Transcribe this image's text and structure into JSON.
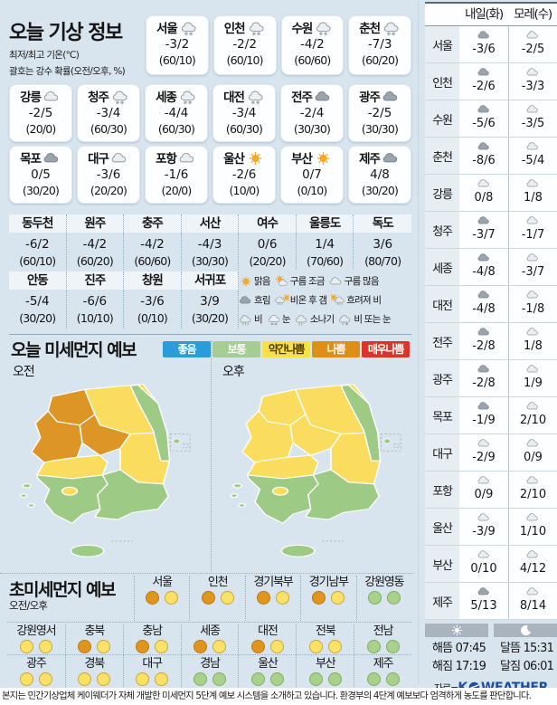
{
  "header": {
    "title": "오늘 기상 정보",
    "subtitle1": "최저/최고 기온(℃)",
    "subtitle2": "괄호는 강수 확률(오전/오후, %)"
  },
  "today_cards": {
    "row1": [
      {
        "name": "서울",
        "icon": "snow",
        "temp": "-3/2",
        "prob": "(60/10)"
      },
      {
        "name": "인천",
        "icon": "snow",
        "temp": "-2/2",
        "prob": "(60/10)"
      },
      {
        "name": "수원",
        "icon": "snow",
        "temp": "-4/2",
        "prob": "(60/60)"
      },
      {
        "name": "춘천",
        "icon": "snow",
        "temp": "-7/3",
        "prob": "(60/20)"
      }
    ],
    "row2": [
      {
        "name": "강릉",
        "icon": "cloud-light",
        "temp": "-2/5",
        "prob": "(20/0)"
      },
      {
        "name": "청주",
        "icon": "snow",
        "temp": "-3/4",
        "prob": "(60/30)"
      },
      {
        "name": "세종",
        "icon": "snow",
        "temp": "-4/4",
        "prob": "(60/30)"
      },
      {
        "name": "대전",
        "icon": "snow",
        "temp": "-3/4",
        "prob": "(60/30)"
      },
      {
        "name": "전주",
        "icon": "cloud-dark",
        "temp": "-2/4",
        "prob": "(30/30)"
      },
      {
        "name": "광주",
        "icon": "cloud-dark",
        "temp": "-2/5",
        "prob": "(30/30)"
      }
    ],
    "row3": [
      {
        "name": "목포",
        "icon": "cloud-dark",
        "temp": "0/5",
        "prob": "(30/20)"
      },
      {
        "name": "대구",
        "icon": "cloud-light",
        "temp": "-3/6",
        "prob": "(20/20)"
      },
      {
        "name": "포항",
        "icon": "cloud-light",
        "temp": "-1/6",
        "prob": "(20/0)"
      },
      {
        "name": "울산",
        "icon": "sun",
        "temp": "-2/6",
        "prob": "(10/0)"
      },
      {
        "name": "부산",
        "icon": "sun",
        "temp": "0/7",
        "prob": "(0/10)"
      },
      {
        "name": "제주",
        "icon": "cloud-dark",
        "temp": "4/8",
        "prob": "(30/20)"
      }
    ]
  },
  "extra_table": {
    "row1": [
      {
        "name": "동두천",
        "temp": "-6/2",
        "prob": "(60/10)"
      },
      {
        "name": "원주",
        "temp": "-4/2",
        "prob": "(60/20)"
      },
      {
        "name": "충주",
        "temp": "-4/2",
        "prob": "(60/60)"
      },
      {
        "name": "서산",
        "temp": "-4/3",
        "prob": "(30/30)"
      },
      {
        "name": "여수",
        "temp": "0/6",
        "prob": "(20/20)"
      },
      {
        "name": "울릉도",
        "temp": "1/4",
        "prob": "(70/60)"
      },
      {
        "name": "독도",
        "temp": "3/6",
        "prob": "(80/70)"
      }
    ],
    "row2": [
      {
        "name": "안동",
        "temp": "-5/4",
        "prob": "(30/20)"
      },
      {
        "name": "진주",
        "temp": "-6/6",
        "prob": "(10/10)"
      },
      {
        "name": "창원",
        "temp": "-3/6",
        "prob": "(0/10)"
      },
      {
        "name": "서귀포",
        "temp": "3/9",
        "prob": "(30/20)"
      }
    ]
  },
  "weather_legend": {
    "rows": [
      [
        {
          "icon": "sun",
          "label": "맑음"
        },
        {
          "icon": "sun-cloud",
          "label": "구름 조금"
        },
        {
          "icon": "cloud-light",
          "label": "구름 많음"
        }
      ],
      [
        {
          "icon": "cloud-dark",
          "label": "흐림"
        },
        {
          "icon": "rain-sun",
          "label": "비온 후 갬"
        },
        {
          "icon": "sun-rain",
          "label": "흐려져 비"
        }
      ],
      [
        {
          "icon": "rain",
          "label": "비"
        },
        {
          "icon": "snow",
          "label": "눈"
        },
        {
          "icon": "shower",
          "label": "소나기"
        },
        {
          "icon": "rain-or-snow",
          "label": "비 또는 눈"
        }
      ]
    ]
  },
  "dust": {
    "title": "오늘 미세먼지 예보",
    "legend": [
      {
        "label": "좋음",
        "color": "#2b9cd8",
        "text": "#ffffff"
      },
      {
        "label": "보통",
        "color": "#a6cd93",
        "text": "#ffffff"
      },
      {
        "label": "약간나쁨",
        "color": "#f8e04b",
        "text": "#4a3a00"
      },
      {
        "label": "나쁨",
        "color": "#dd9018",
        "text": "#ffffff"
      },
      {
        "label": "매우나쁨",
        "color": "#d9352a",
        "text": "#ffffff"
      }
    ],
    "level_colors": {
      "good": "#2b9cd8",
      "moderate": "#9dcb85",
      "slight": "#fadd5f",
      "bad": "#dd9526",
      "very_bad": "#d43026"
    },
    "maps": [
      {
        "label": "오전",
        "regions": {
          "gyeonggi": "bad",
          "gangwon": "slight",
          "east_strip": "moderate",
          "chungnam": "bad",
          "chungbuk": "bad",
          "gyeongbuk": "slight",
          "jeonbuk": "slight",
          "jeonnam": "moderate",
          "gyeongnam": "moderate",
          "gwangju": "slight",
          "jeju": "moderate",
          "ulleung": "moderate"
        }
      },
      {
        "label": "오후",
        "regions": {
          "gyeonggi": "slight",
          "gangwon": "slight",
          "east_strip": "moderate",
          "chungnam": "slight",
          "chungbuk": "slight",
          "gyeongbuk": "slight",
          "jeonbuk": "slight",
          "jeonnam": "moderate",
          "gyeongnam": "moderate",
          "gwangju": "slight",
          "jeju": "moderate",
          "ulleung": "moderate"
        }
      }
    ]
  },
  "ultrafine": {
    "title": "초미세먼지 예보",
    "subtitle": "오전/오후",
    "circle_colors": {
      "bad": "#e0951f",
      "slight": "#fbe168",
      "moderate": "#a9d18c"
    },
    "circle_borders": {
      "bad": "#b97a0d",
      "slight": "#c8a835",
      "moderate": "#7fae5f"
    },
    "row1": [
      {
        "name": "서울",
        "am": "bad",
        "pm": "slight"
      },
      {
        "name": "인천",
        "am": "bad",
        "pm": "slight"
      },
      {
        "name": "경기북부",
        "am": "bad",
        "pm": "slight"
      },
      {
        "name": "경기남부",
        "am": "bad",
        "pm": "slight"
      },
      {
        "name": "강원영동",
        "am": "moderate",
        "pm": "moderate"
      }
    ],
    "row2": [
      {
        "name": "강원영서",
        "am": "slight",
        "pm": "slight"
      },
      {
        "name": "충북",
        "am": "bad",
        "pm": "slight"
      },
      {
        "name": "충남",
        "am": "bad",
        "pm": "slight"
      },
      {
        "name": "세종",
        "am": "bad",
        "pm": "slight"
      },
      {
        "name": "대전",
        "am": "bad",
        "pm": "slight"
      },
      {
        "name": "전북",
        "am": "slight",
        "pm": "slight"
      },
      {
        "name": "전남",
        "am": "moderate",
        "pm": "moderate"
      }
    ],
    "row3": [
      {
        "name": "광주",
        "am": "slight",
        "pm": "slight"
      },
      {
        "name": "경북",
        "am": "slight",
        "pm": "slight"
      },
      {
        "name": "대구",
        "am": "slight",
        "pm": "slight"
      },
      {
        "name": "경남",
        "am": "moderate",
        "pm": "moderate"
      },
      {
        "name": "울산",
        "am": "moderate",
        "pm": "moderate"
      },
      {
        "name": "부산",
        "am": "moderate",
        "pm": "moderate"
      },
      {
        "name": "제주",
        "am": "moderate",
        "pm": "moderate"
      }
    ]
  },
  "sidebar": {
    "col1": "내일(화)",
    "col2": "모레(수)",
    "rows": [
      {
        "name": "서울",
        "icon1": "cloud-dark",
        "temp1": "-3/6",
        "icon2": "cloud-light",
        "temp2": "-2/5"
      },
      {
        "name": "인천",
        "icon1": "cloud-dark",
        "temp1": "-2/6",
        "icon2": "cloud-light",
        "temp2": "-3/3"
      },
      {
        "name": "수원",
        "icon1": "cloud-dark",
        "temp1": "-5/6",
        "icon2": "cloud-light",
        "temp2": "-3/5"
      },
      {
        "name": "춘천",
        "icon1": "cloud-dark",
        "temp1": "-8/6",
        "icon2": "cloud-light",
        "temp2": "-5/4"
      },
      {
        "name": "강릉",
        "icon1": "cloud-light",
        "temp1": "0/8",
        "icon2": "cloud-light",
        "temp2": "1/8"
      },
      {
        "name": "청주",
        "icon1": "cloud-dark",
        "temp1": "-3/7",
        "icon2": "cloud-light",
        "temp2": "-1/7"
      },
      {
        "name": "세종",
        "icon1": "cloud-dark",
        "temp1": "-4/8",
        "icon2": "cloud-light",
        "temp2": "-3/7"
      },
      {
        "name": "대전",
        "icon1": "cloud-dark",
        "temp1": "-4/8",
        "icon2": "cloud-light",
        "temp2": "-1/8"
      },
      {
        "name": "전주",
        "icon1": "cloud-dark",
        "temp1": "-2/8",
        "icon2": "cloud-light",
        "temp2": "1/8"
      },
      {
        "name": "광주",
        "icon1": "cloud-dark",
        "temp1": "-2/8",
        "icon2": "cloud-light",
        "temp2": "1/9"
      },
      {
        "name": "목포",
        "icon1": "cloud-dark",
        "temp1": "-1/9",
        "icon2": "cloud-light",
        "temp2": "2/10"
      },
      {
        "name": "대구",
        "icon1": "cloud-light",
        "temp1": "-2/9",
        "icon2": "cloud-light",
        "temp2": "0/9"
      },
      {
        "name": "포항",
        "icon1": "cloud-light",
        "temp1": "0/9",
        "icon2": "cloud-light",
        "temp2": "2/10"
      },
      {
        "name": "울산",
        "icon1": "cloud-light",
        "temp1": "-3/9",
        "icon2": "cloud-light",
        "temp2": "1/10"
      },
      {
        "name": "부산",
        "icon1": "cloud-light",
        "temp1": "0/10",
        "icon2": "cloud-light",
        "temp2": "4/12"
      },
      {
        "name": "제주",
        "icon1": "cloud-dark",
        "temp1": "5/13",
        "icon2": "cloud-light",
        "temp2": "8/14"
      }
    ],
    "astro": [
      {
        "label": "해뜸",
        "time": "07:45"
      },
      {
        "label": "달뜸",
        "time": "15:31"
      },
      {
        "label": "해짐",
        "time": "17:19"
      },
      {
        "label": "달짐",
        "time": "06:01"
      }
    ],
    "source_prefix": "자료=",
    "brand_k": "K",
    "brand_rest": "WEATHER"
  },
  "footer": {
    "note": "본지는 민간기상업체 케이웨더가 자체 개발한 미세먼지 5단계 예보 시스템을 소개하고 있습니다. 환경부의 4단계 예보보다 엄격하게 농도를 판단합니다."
  }
}
